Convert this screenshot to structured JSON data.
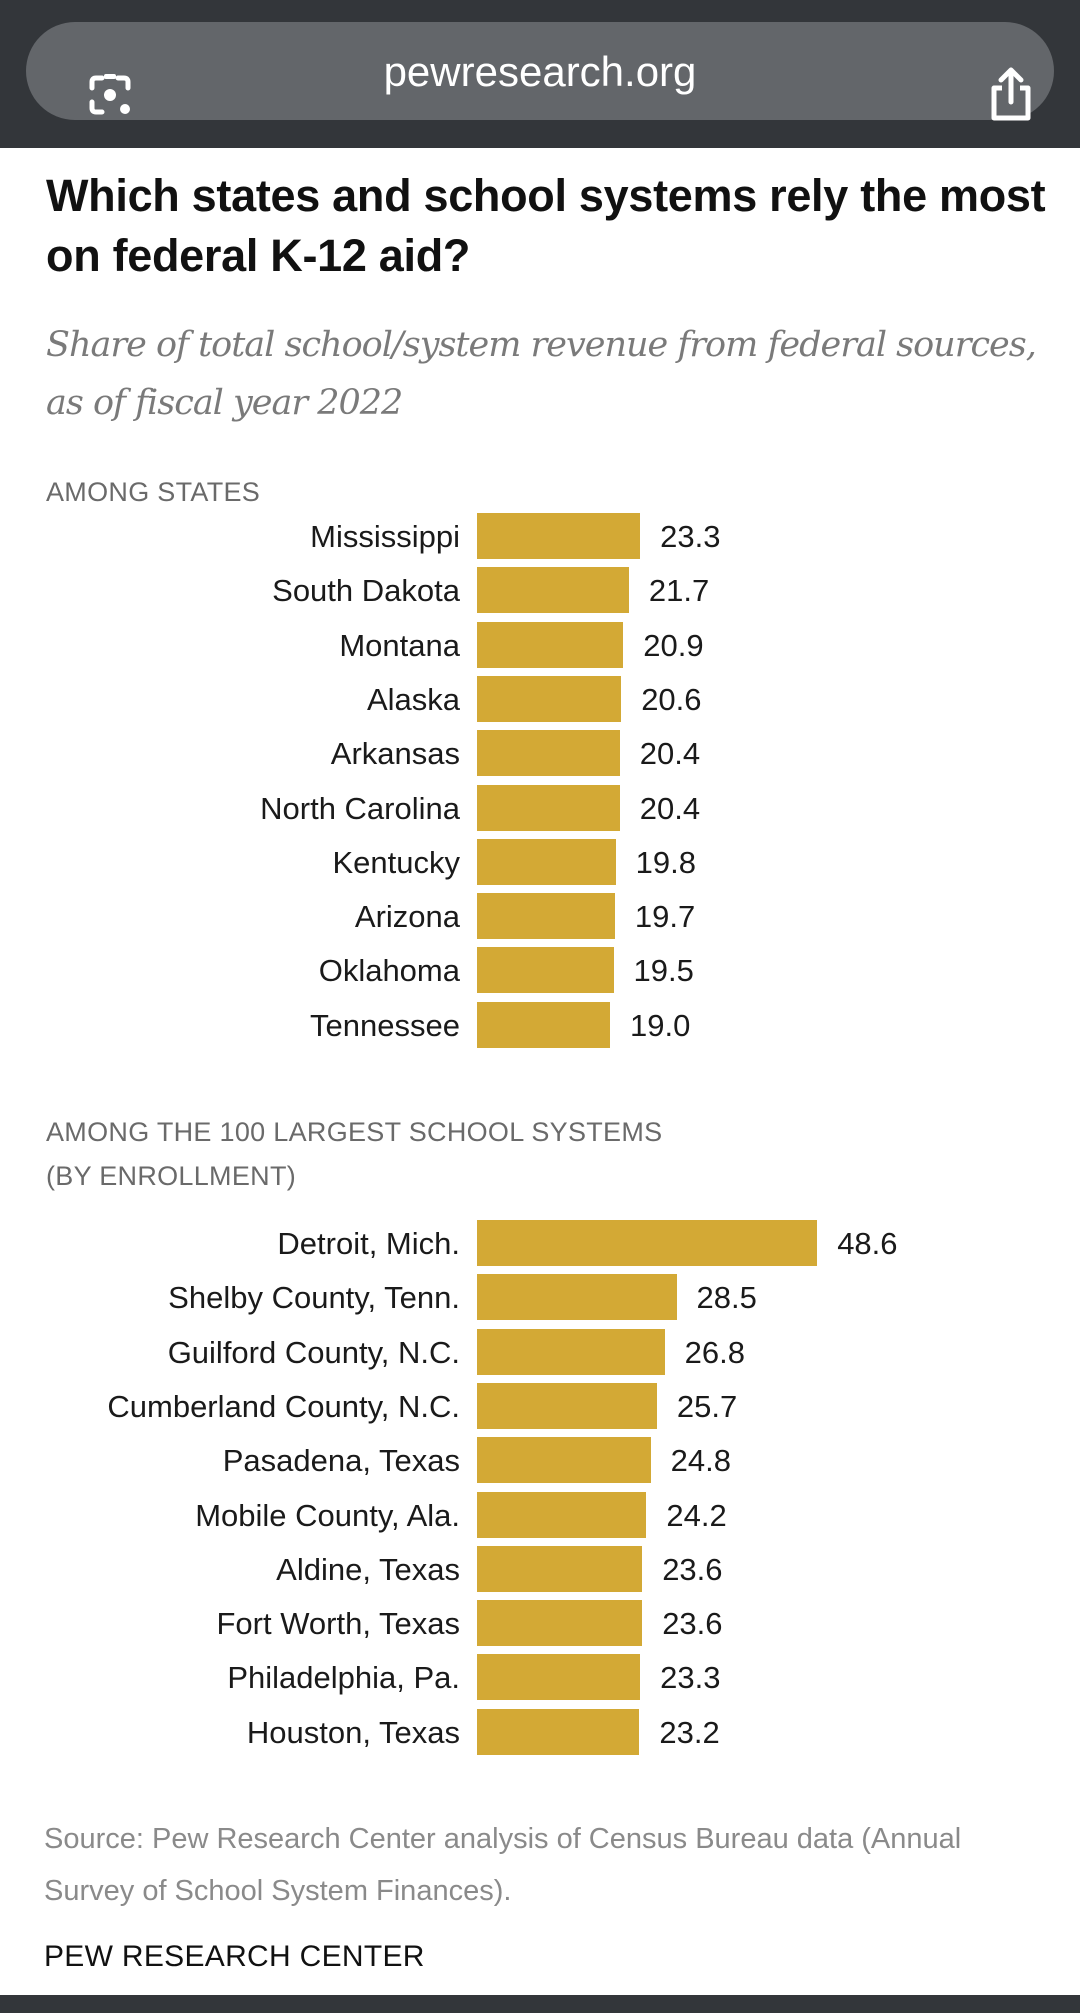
{
  "browser": {
    "url": "pewresearch.org",
    "left_icon": "google-lens-icon",
    "right_icon": "share-icon"
  },
  "colors": {
    "bar": "#d3a935",
    "browser_chrome": "#33363a",
    "url_pill": "#63666a"
  },
  "chart_data": [
    {
      "type": "bar",
      "orientation": "horizontal",
      "title": "Which states and school systems rely the most on federal K-12 aid?",
      "subtitle": "Share of total school/system revenue from federal sources, as of fiscal year 2022",
      "section_label": "AMONG STATES",
      "categories": [
        "Mississippi",
        "South Dakota",
        "Montana",
        "Alaska",
        "Arkansas",
        "North Carolina",
        "Kentucky",
        "Arizona",
        "Oklahoma",
        "Tennessee"
      ],
      "values": [
        23.3,
        21.7,
        20.9,
        20.6,
        20.4,
        20.4,
        19.8,
        19.7,
        19.5,
        19.0
      ],
      "value_labels": [
        "23.3",
        "21.7",
        "20.9",
        "20.6",
        "20.4",
        "20.4",
        "19.8",
        "19.7",
        "19.5",
        "19.0"
      ],
      "xlabel": "",
      "ylabel": "",
      "grid": false,
      "xlim": [
        0,
        50
      ]
    },
    {
      "type": "bar",
      "orientation": "horizontal",
      "section_label_line1": "AMONG THE 100 LARGEST SCHOOL SYSTEMS",
      "section_label_line2": "(BY ENROLLMENT)",
      "categories": [
        "Detroit, Mich.",
        "Shelby County, Tenn.",
        "Guilford County, N.C.",
        "Cumberland County, N.C.",
        "Pasadena, Texas",
        "Mobile County, Ala.",
        "Aldine, Texas",
        "Fort Worth, Texas",
        "Philadelphia, Pa.",
        "Houston, Texas"
      ],
      "values": [
        48.6,
        28.5,
        26.8,
        25.7,
        24.8,
        24.2,
        23.6,
        23.6,
        23.3,
        23.2
      ],
      "value_labels": [
        "48.6",
        "28.5",
        "26.8",
        "25.7",
        "24.8",
        "24.2",
        "23.6",
        "23.6",
        "23.3",
        "23.2"
      ],
      "xlabel": "",
      "ylabel": "",
      "grid": false,
      "xlim": [
        0,
        50
      ]
    }
  ],
  "footer": {
    "source": "Source: Pew Research Center analysis of Census Bureau data (Annual Survey of School System Finances).",
    "brand": "PEW RESEARCH CENTER"
  }
}
